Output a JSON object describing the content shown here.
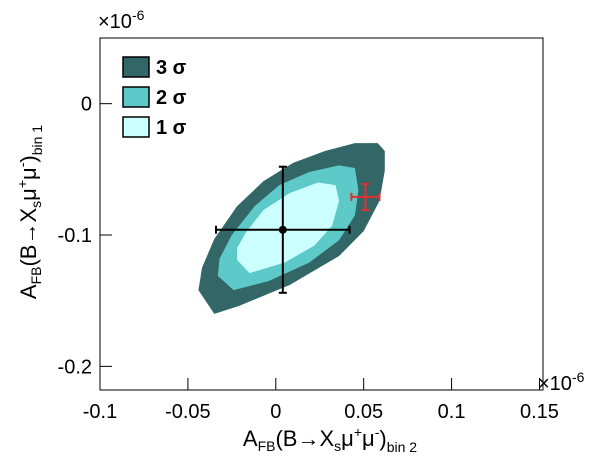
{
  "chart_data": {
    "type": "contour",
    "xlabel": [
      "A",
      "FB",
      "(B→X",
      "s",
      "μ",
      "+",
      "μ",
      "-",
      ")",
      "bin 2"
    ],
    "ylabel": [
      "A",
      "FB",
      "(B→X",
      "s",
      "μ",
      "+",
      "μ",
      "-",
      ")",
      "bin 1"
    ],
    "xmultiplier": [
      "×10",
      "-6"
    ],
    "ymultiplier": [
      "×10",
      "-6"
    ],
    "xlim": [
      -0.1,
      0.152
    ],
    "ylim": [
      -0.218,
      0.05
    ],
    "xticks": [
      -0.1,
      -0.05,
      0,
      0.05,
      0.1,
      0.15
    ],
    "yticks": [
      0,
      -0.1,
      -0.2
    ],
    "series": [
      {
        "name": "3 σ",
        "color": "#336666",
        "x": [
          -0.044,
          -0.035,
          -0.021,
          0.008,
          0.036,
          0.05,
          0.059,
          0.062,
          0.062,
          0.058,
          0.045,
          0.028,
          0.01,
          -0.007,
          -0.022,
          -0.035,
          -0.042
        ],
        "y": [
          -0.142,
          -0.16,
          -0.154,
          -0.138,
          -0.116,
          -0.097,
          -0.074,
          -0.051,
          -0.036,
          -0.03,
          -0.03,
          -0.036,
          -0.045,
          -0.059,
          -0.078,
          -0.103,
          -0.125
        ]
      },
      {
        "name": "2 σ",
        "color": "#5ec9c9",
        "x": [
          -0.033,
          -0.024,
          -0.004,
          0.019,
          0.036,
          0.045,
          0.047,
          0.045,
          0.036,
          0.019,
          0.002,
          -0.012,
          -0.025,
          -0.032
        ],
        "y": [
          -0.131,
          -0.142,
          -0.135,
          -0.121,
          -0.104,
          -0.085,
          -0.066,
          -0.049,
          -0.047,
          -0.052,
          -0.062,
          -0.078,
          -0.1,
          -0.118
        ]
      },
      {
        "name": "1 σ",
        "color": "#ccffff",
        "x": [
          -0.022,
          -0.015,
          0.005,
          0.022,
          0.032,
          0.036,
          0.034,
          0.024,
          0.008,
          -0.007,
          -0.017,
          -0.022
        ],
        "y": [
          -0.119,
          -0.129,
          -0.121,
          -0.108,
          -0.093,
          -0.074,
          -0.062,
          -0.06,
          -0.068,
          -0.081,
          -0.098,
          -0.11
        ]
      }
    ],
    "points": [
      {
        "color": "#000000",
        "x": 0.004,
        "y": -0.096,
        "xerr": 0.038,
        "yerr": 0.048,
        "marker": true
      },
      {
        "color": "#e03030",
        "x": 0.051,
        "y": -0.071,
        "xerr": 0.008,
        "yerr": 0.01,
        "marker": false
      }
    ]
  }
}
